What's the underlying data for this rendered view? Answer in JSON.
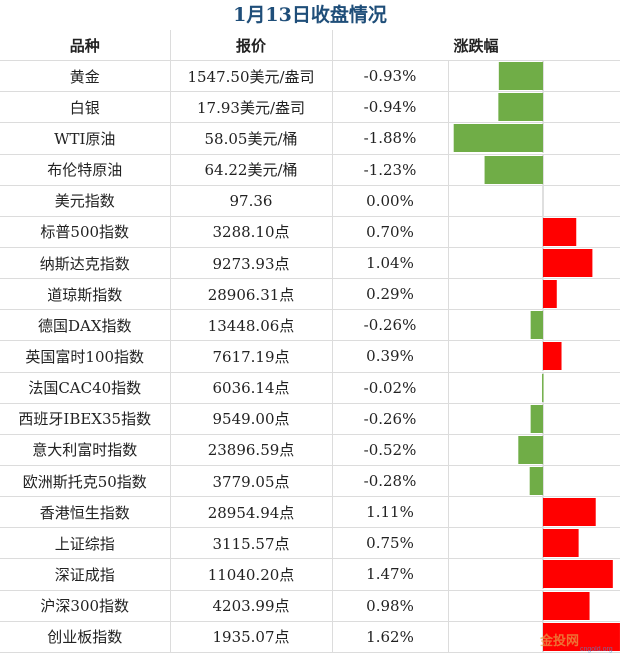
{
  "title": "1月13日收盘情况",
  "header": {
    "col_name": "品种",
    "col_price": "报价",
    "col_change": "涨跌幅"
  },
  "colors": {
    "positive": "#ff0000",
    "negative": "#70ad47",
    "title": "#1f4e79"
  },
  "watermark": "金投网 cngold.org",
  "chart_data": {
    "type": "bar",
    "orientation": "horizontal",
    "categories": [
      "黄金",
      "白银",
      "WTI原油",
      "布伦特原油",
      "美元指数",
      "标普500指数",
      "纳斯达克指数",
      "道琼斯指数",
      "德国DAX指数",
      "英国富时100指数",
      "法国CAC40指数",
      "西班牙IBEX35指数",
      "意大利富时指数",
      "欧洲斯托克50指数",
      "香港恒生指数",
      "上证综指",
      "深证成指",
      "沪深300指数",
      "创业板指数"
    ],
    "series": [
      {
        "values": [
          -0.93,
          -0.94,
          -1.88,
          -1.23,
          0.0,
          0.7,
          1.04,
          0.29,
          -0.26,
          0.39,
          -0.02,
          -0.26,
          -0.52,
          -0.28,
          1.11,
          0.75,
          1.47,
          0.98,
          1.62
        ]
      }
    ]
  },
  "rows": [
    {
      "name": "黄金",
      "price": "1547.50美元/盎司",
      "change": "-0.93%"
    },
    {
      "name": "白银",
      "price": "17.93美元/盎司",
      "change": "-0.94%"
    },
    {
      "name": "WTI原油",
      "price": "58.05美元/桶",
      "change": "-1.88%"
    },
    {
      "name": "布伦特原油",
      "price": "64.22美元/桶",
      "change": "-1.23%"
    },
    {
      "name": "美元指数",
      "price": "97.36",
      "change": "0.00%"
    },
    {
      "name": "标普500指数",
      "price": "3288.10点",
      "change": "0.70%"
    },
    {
      "name": "纳斯达克指数",
      "price": "9273.93点",
      "change": "1.04%"
    },
    {
      "name": "道琼斯指数",
      "price": "28906.31点",
      "change": "0.29%"
    },
    {
      "name": "德国DAX指数",
      "price": "13448.06点",
      "change": "-0.26%"
    },
    {
      "name": "英国富时100指数",
      "price": "7617.19点",
      "change": "0.39%"
    },
    {
      "name": "法国CAC40指数",
      "price": "6036.14点",
      "change": "-0.02%"
    },
    {
      "name": "西班牙IBEX35指数",
      "price": "9549.00点",
      "change": "-0.26%"
    },
    {
      "name": "意大利富时指数",
      "price": "23896.59点",
      "change": "-0.52%"
    },
    {
      "name": "欧洲斯托克50指数",
      "price": "3779.05点",
      "change": "-0.28%"
    },
    {
      "name": "香港恒生指数",
      "price": "28954.94点",
      "change": "1.11%"
    },
    {
      "name": "上证综指",
      "price": "3115.57点",
      "change": "0.75%"
    },
    {
      "name": "深证成指",
      "price": "11040.20点",
      "change": "1.47%"
    },
    {
      "name": "沪深300指数",
      "price": "4203.99点",
      "change": "0.98%"
    },
    {
      "name": "创业板指数",
      "price": "1935.07点",
      "change": "1.62%"
    }
  ]
}
